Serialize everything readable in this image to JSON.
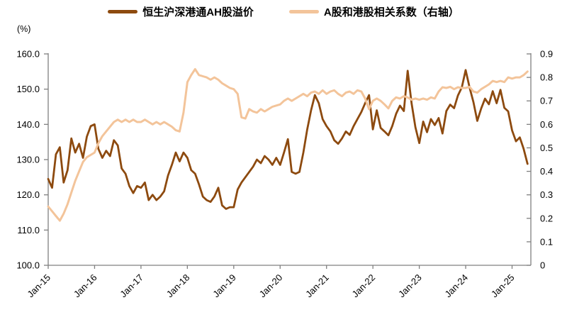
{
  "chart_data": {
    "type": "line",
    "x_start": "Jan-2015",
    "x_end": "May-2025",
    "x_frequency": "monthly",
    "x_tick_labels": [
      "Jan-15",
      "Jan-16",
      "Jan-17",
      "Jan-18",
      "Jan-19",
      "Jan-20",
      "Jan-21",
      "Jan-22",
      "Jan-23",
      "Jan-24",
      "Jan-25"
    ],
    "left_axis": {
      "unit": "(%)",
      "min": 100,
      "max": 160,
      "tick_labels": [
        "160.0",
        "150.0",
        "140.0",
        "130.0",
        "120.0",
        "110.0",
        "100.0"
      ],
      "tick_values": [
        160,
        150,
        140,
        130,
        120,
        110,
        100
      ]
    },
    "right_axis": {
      "min": 0,
      "max": 0.9,
      "tick_labels": [
        "0.9",
        "0.8",
        "0.7",
        "0.6",
        "0.5",
        "0.4",
        "0.3",
        "0.2",
        "0.1",
        "0"
      ],
      "tick_values": [
        0.9,
        0.8,
        0.7,
        0.6,
        0.5,
        0.4,
        0.3,
        0.2,
        0.1,
        0
      ]
    },
    "grid": false,
    "legend_position": "top-center",
    "series": [
      {
        "name": "恒生沪深港通AH股溢价",
        "axis": "left",
        "color": "#8D4A0F",
        "stroke_width": 2.8,
        "values": [
          124.5,
          122.0,
          131.5,
          133.5,
          123.5,
          127.0,
          136.0,
          132.0,
          134.5,
          130.5,
          136.5,
          139.5,
          140.0,
          133.0,
          130.5,
          132.5,
          131.0,
          135.5,
          134.0,
          127.5,
          126.0,
          122.5,
          120.5,
          122.5,
          122.0,
          123.5,
          118.5,
          120.0,
          118.5,
          119.5,
          121.0,
          125.5,
          128.5,
          132.0,
          129.5,
          132.0,
          130.5,
          127.0,
          126.0,
          123.0,
          119.5,
          118.5,
          118.0,
          119.5,
          122.0,
          117.0,
          116.0,
          116.5,
          116.5,
          121.5,
          123.5,
          125.0,
          126.5,
          128.0,
          130.0,
          129.0,
          131.0,
          130.0,
          128.5,
          130.5,
          128.5,
          132.0,
          135.8,
          126.5,
          126.0,
          126.5,
          132.0,
          138.5,
          144.0,
          148.3,
          146.0,
          141.5,
          139.5,
          138.0,
          135.5,
          134.5,
          136.0,
          138.0,
          137.0,
          139.5,
          141.5,
          143.5,
          146.0,
          148.3,
          138.6,
          144.0,
          139.0,
          138.0,
          136.9,
          139.5,
          143.0,
          145.3,
          143.8,
          155.2,
          146.0,
          139.2,
          134.7,
          140.8,
          137.8,
          141.5,
          139.8,
          141.8,
          137.4,
          143.8,
          145.6,
          144.6,
          148.2,
          150.5,
          155.4,
          150.5,
          146.3,
          141.0,
          144.5,
          147.3,
          145.7,
          149.4,
          146.0,
          149.8,
          144.7,
          143.7,
          138.3,
          135.2,
          136.3,
          133.0,
          128.8
        ]
      },
      {
        "name": "A股和港股相关系数（右轴）",
        "axis": "right",
        "color": "#F3C49A",
        "stroke_width": 3,
        "values": [
          0.25,
          0.23,
          0.21,
          0.19,
          0.22,
          0.26,
          0.31,
          0.36,
          0.4,
          0.44,
          0.46,
          0.47,
          0.48,
          0.52,
          0.55,
          0.57,
          0.59,
          0.61,
          0.62,
          0.61,
          0.62,
          0.61,
          0.62,
          0.61,
          0.61,
          0.62,
          0.61,
          0.6,
          0.61,
          0.6,
          0.61,
          0.6,
          0.59,
          0.575,
          0.57,
          0.65,
          0.78,
          0.81,
          0.835,
          0.81,
          0.805,
          0.8,
          0.79,
          0.8,
          0.79,
          0.775,
          0.765,
          0.755,
          0.75,
          0.73,
          0.63,
          0.625,
          0.665,
          0.655,
          0.65,
          0.665,
          0.655,
          0.665,
          0.675,
          0.68,
          0.685,
          0.7,
          0.71,
          0.7,
          0.71,
          0.72,
          0.73,
          0.72,
          0.735,
          0.74,
          0.73,
          0.745,
          0.73,
          0.74,
          0.745,
          0.73,
          0.72,
          0.735,
          0.74,
          0.73,
          0.745,
          0.74,
          0.71,
          0.665,
          0.7,
          0.71,
          0.7,
          0.685,
          0.668,
          0.7,
          0.715,
          0.71,
          0.72,
          0.715,
          0.705,
          0.71,
          0.705,
          0.71,
          0.705,
          0.715,
          0.71,
          0.74,
          0.758,
          0.755,
          0.76,
          0.75,
          0.758,
          0.755,
          0.755,
          0.76,
          0.74,
          0.735,
          0.75,
          0.76,
          0.77,
          0.785,
          0.78,
          0.785,
          0.78,
          0.8,
          0.795,
          0.8,
          0.8,
          0.81,
          0.825
        ]
      }
    ],
    "axis_color": "#808080",
    "label_color": "#000000"
  }
}
